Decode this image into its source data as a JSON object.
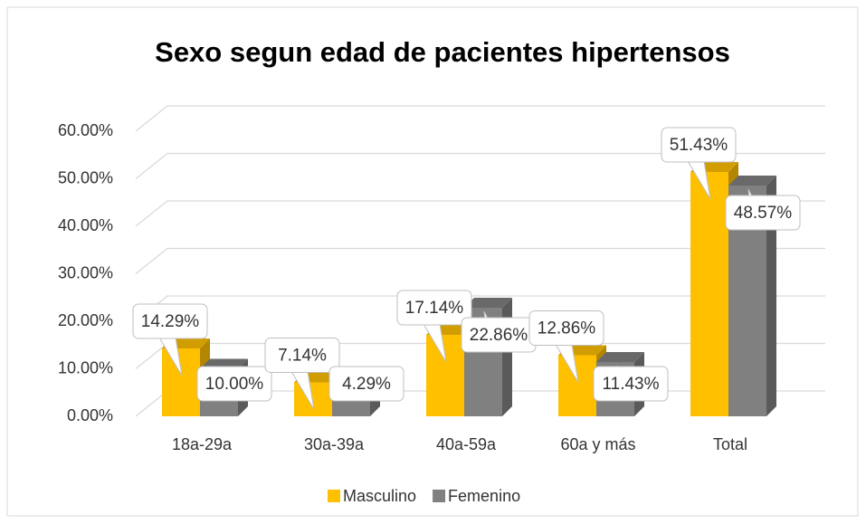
{
  "chart_data": {
    "type": "bar3d",
    "title": "Sexo segun edad de pacientes hipertensos",
    "categories": [
      "18a-29a",
      "30a-39a",
      "40a-59a",
      "60a y más",
      "Total"
    ],
    "series": [
      {
        "name": "Masculino",
        "color": "#ffc000",
        "values": [
          14.29,
          7.14,
          17.14,
          12.86,
          51.43
        ],
        "value_labels": [
          "14.29%",
          "7.14%",
          "17.14%",
          "12.86%",
          "51.43%"
        ]
      },
      {
        "name": "Femenino",
        "color": "#808080",
        "values": [
          10.0,
          4.29,
          22.86,
          11.43,
          48.57
        ],
        "value_labels": [
          "10.00%",
          "4.29%",
          "22.86%",
          "11.43%",
          "48.57%"
        ]
      }
    ],
    "ylim": [
      0,
      60
    ],
    "yticks": [
      {
        "value": 0,
        "label": "0.00%"
      },
      {
        "value": 10,
        "label": "10.00%"
      },
      {
        "value": 20,
        "label": "20.00%"
      },
      {
        "value": 30,
        "label": "30.00%"
      },
      {
        "value": 40,
        "label": "40.00%"
      },
      {
        "value": 50,
        "label": "50.00%"
      },
      {
        "value": 60,
        "label": "60.00%"
      }
    ],
    "grid": true,
    "legend": "bottom"
  }
}
